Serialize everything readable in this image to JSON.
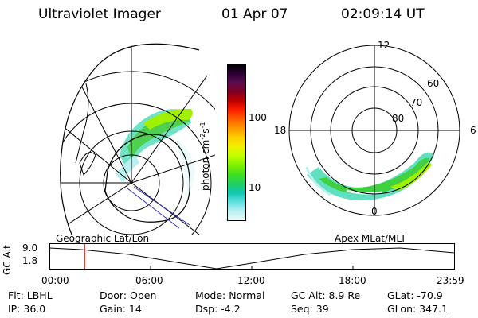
{
  "header": {
    "title": "Ultraviolet Imager",
    "date": "01 Apr 07",
    "time": "02:09:14 UT"
  },
  "colorbar": {
    "unit_label": "photon cm",
    "unit_sup1": "-2",
    "unit_mid": "s",
    "unit_sup2": "-1",
    "tick_100": "100",
    "tick_10": "10",
    "colors": [
      "#000000",
      "#2a0033",
      "#5b0d4d",
      "#800020",
      "#c00000",
      "#ff2000",
      "#ff6000",
      "#ff9a00",
      "#ffd000",
      "#f0f000",
      "#c0ff00",
      "#80f000",
      "#40e020",
      "#20d060",
      "#10c8b0",
      "#60e0e0",
      "#b8f0f0",
      "#e8fafa"
    ]
  },
  "polar_plot": {
    "label_12": "12",
    "label_6": "6",
    "label_0": "0",
    "label_18": "18",
    "lat_60": "60",
    "lat_70": "70",
    "lat_80": "80"
  },
  "timeline": {
    "y_axis_label": "GC Alt",
    "y_top": "9.0",
    "y_bottom": "1.8",
    "left_caption": "Geographic Lat/Lon",
    "right_caption": "Apex  MLat/MLT",
    "ticks": [
      "00:00",
      "06:00",
      "12:00",
      "18:00",
      "23:59"
    ],
    "marker_color": "#cc0000"
  },
  "info": {
    "flt": "Flt: LBHL",
    "ip": "IP: 36.0",
    "door": "Door: Open",
    "gain": "Gain: 14",
    "mode": "Mode: Normal",
    "dsp": "Dsp:    -4.2",
    "gcalt": "GC Alt: 8.9 Re",
    "seq": "Seq: 39",
    "glat": "GLat: -70.9",
    "glon": "GLon: 347.1"
  }
}
